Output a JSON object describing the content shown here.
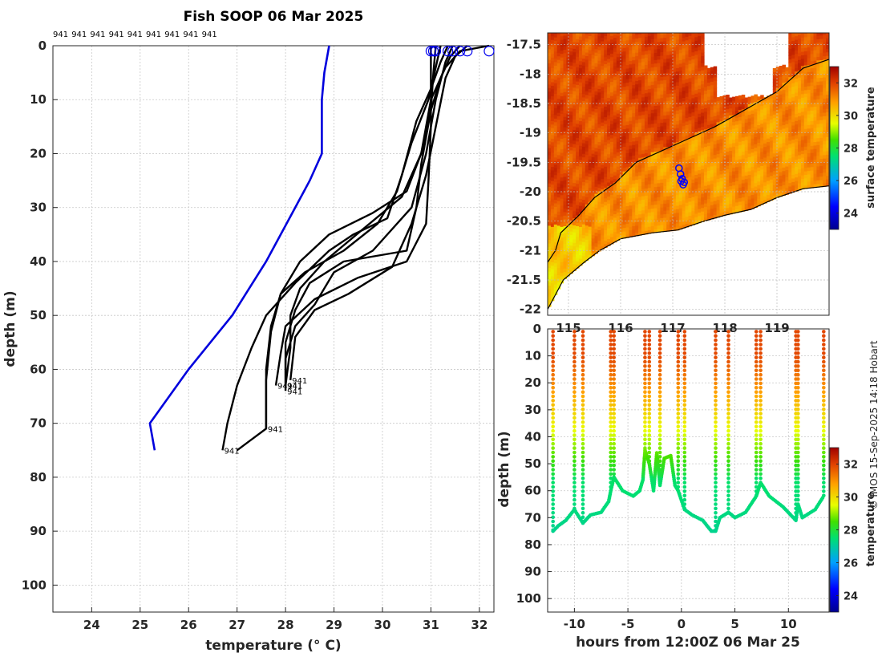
{
  "title": "Fish SOOP 06 Mar 2025",
  "profile_ids": [
    "941",
    "941",
    "941",
    "941",
    "941",
    "941",
    "941",
    "941",
    "941"
  ],
  "profile_end_labels": [
    "941",
    "941",
    "941",
    "941",
    "941",
    "941",
    "941"
  ],
  "credit": "© IMOS 15-Sep-2025 14:18 Hobart",
  "chart_data": [
    {
      "type": "line",
      "name": "temperature-profiles",
      "xlabel": "temperature (° C)",
      "ylabel": "depth (m)",
      "xlim": [
        23.2,
        32.3
      ],
      "ylim": [
        105,
        0
      ],
      "xticks": [
        "24",
        "25",
        "26",
        "27",
        "28",
        "29",
        "30",
        "31",
        "32"
      ],
      "yticks": [
        "0",
        "10",
        "20",
        "30",
        "40",
        "50",
        "60",
        "70",
        "80",
        "90",
        "100"
      ],
      "grid": true,
      "reference_profile": {
        "color": "#0000dd",
        "points": [
          [
            28.9,
            0
          ],
          [
            28.8,
            5
          ],
          [
            28.75,
            10
          ],
          [
            28.75,
            20
          ],
          [
            28.5,
            25
          ],
          [
            28.2,
            30
          ],
          [
            27.6,
            40
          ],
          [
            26.9,
            50
          ],
          [
            26.0,
            60
          ],
          [
            25.2,
            70
          ],
          [
            25.3,
            75
          ]
        ]
      },
      "surface_markers": [
        31.0,
        31.05,
        31.1,
        31.35,
        31.45,
        31.6,
        31.75,
        32.2
      ],
      "profiles": [
        {
          "points": [
            [
              31.0,
              0
            ],
            [
              31.0,
              5
            ],
            [
              31.0,
              15
            ],
            [
              30.95,
              25
            ],
            [
              30.9,
              33
            ],
            [
              30.5,
              40
            ],
            [
              29.5,
              43
            ],
            [
              28.6,
              47
            ],
            [
              28.0,
              52
            ],
            [
              27.9,
              57
            ],
            [
              27.8,
              63
            ]
          ]
        },
        {
          "points": [
            [
              31.1,
              0
            ],
            [
              31.05,
              5
            ],
            [
              31.0,
              12
            ],
            [
              30.8,
              20
            ],
            [
              30.4,
              28
            ],
            [
              29.6,
              34
            ],
            [
              28.8,
              40
            ],
            [
              28.3,
              45
            ],
            [
              28.1,
              50
            ],
            [
              28.1,
              56
            ],
            [
              28.0,
              63
            ]
          ]
        },
        {
          "points": [
            [
              31.2,
              0
            ],
            [
              31.1,
              4
            ],
            [
              30.95,
              10
            ],
            [
              30.6,
              18
            ],
            [
              30.3,
              27
            ],
            [
              29.9,
              33
            ],
            [
              29.2,
              38
            ],
            [
              28.4,
              42
            ],
            [
              27.9,
              46
            ],
            [
              27.7,
              52
            ],
            [
              27.6,
              60
            ],
            [
              27.6,
              71
            ]
          ]
        },
        {
          "points": [
            [
              31.35,
              0
            ],
            [
              31.2,
              3
            ],
            [
              31.0,
              8
            ],
            [
              30.7,
              14
            ],
            [
              30.4,
              24
            ],
            [
              30.1,
              32
            ],
            [
              29.4,
              35
            ],
            [
              28.9,
              38
            ],
            [
              28.2,
              44
            ],
            [
              27.6,
              50
            ],
            [
              27.3,
              56
            ],
            [
              27.0,
              63
            ],
            [
              26.8,
              70
            ],
            [
              26.7,
              75
            ]
          ]
        },
        {
          "points": [
            [
              31.45,
              0
            ],
            [
              31.3,
              3
            ],
            [
              31.1,
              10
            ],
            [
              30.9,
              20
            ],
            [
              30.6,
              30
            ],
            [
              29.8,
              38
            ],
            [
              29.0,
              42
            ],
            [
              28.6,
              48
            ],
            [
              28.2,
              52
            ],
            [
              28.0,
              58
            ],
            [
              28.0,
              64
            ]
          ]
        },
        {
          "points": [
            [
              31.6,
              0
            ],
            [
              31.4,
              2
            ],
            [
              31.2,
              6
            ],
            [
              31.0,
              12
            ],
            [
              30.8,
              22
            ],
            [
              30.7,
              30
            ],
            [
              30.5,
              38
            ],
            [
              29.2,
              40
            ],
            [
              28.5,
              44
            ],
            [
              28.2,
              49
            ],
            [
              28.0,
              55
            ],
            [
              28.0,
              63
            ]
          ]
        },
        {
          "points": [
            [
              31.75,
              0
            ],
            [
              31.5,
              2
            ],
            [
              31.3,
              6
            ],
            [
              31.1,
              15
            ],
            [
              30.9,
              24
            ],
            [
              30.6,
              33
            ],
            [
              30.2,
              41
            ],
            [
              29.3,
              46
            ],
            [
              28.6,
              49
            ],
            [
              28.2,
              54
            ],
            [
              28.1,
              62
            ]
          ]
        },
        {
          "points": [
            [
              32.2,
              0
            ],
            [
              31.6,
              1
            ],
            [
              31.3,
              4
            ],
            [
              31.0,
              10
            ],
            [
              30.8,
              20
            ],
            [
              30.5,
              27
            ],
            [
              29.8,
              31
            ],
            [
              28.9,
              35
            ],
            [
              28.3,
              40
            ],
            [
              27.9,
              46
            ],
            [
              27.7,
              53
            ],
            [
              27.6,
              62
            ],
            [
              27.6,
              71
            ],
            [
              27.3,
              73
            ],
            [
              27.0,
              75
            ]
          ]
        }
      ]
    },
    {
      "type": "heatmap",
      "name": "sst-map",
      "xlim": [
        114.6,
        120.0
      ],
      "ylim": [
        -22.1,
        -17.3
      ],
      "xticks": [
        "115",
        "116",
        "117",
        "118",
        "119"
      ],
      "yticks": [
        "-17.5",
        "-18",
        "-18.5",
        "-19",
        "-19.5",
        "-20",
        "-20.5",
        "-21",
        "-21.5",
        "-22"
      ],
      "colorbar_label": "surface temperature",
      "colorbar_ticks": [
        "24",
        "26",
        "28",
        "30",
        "32"
      ],
      "colorbar_range": [
        23,
        33
      ],
      "coastline": [
        [
          114.6,
          -21.2
        ],
        [
          114.75,
          -21.0
        ],
        [
          114.85,
          -20.7
        ],
        [
          115.2,
          -20.4
        ],
        [
          115.5,
          -20.1
        ],
        [
          115.9,
          -19.85
        ],
        [
          116.3,
          -19.5
        ],
        [
          116.8,
          -19.3
        ],
        [
          117.3,
          -19.1
        ],
        [
          117.8,
          -18.9
        ],
        [
          118.2,
          -18.7
        ],
        [
          118.6,
          -18.5
        ],
        [
          119.0,
          -18.3
        ],
        [
          119.5,
          -17.9
        ],
        [
          120.0,
          -17.75
        ]
      ],
      "lower_coast": [
        [
          114.6,
          -22.0
        ],
        [
          114.9,
          -21.5
        ],
        [
          115.3,
          -21.2
        ],
        [
          115.6,
          -21.0
        ],
        [
          116.0,
          -20.8
        ],
        [
          116.6,
          -20.7
        ],
        [
          117.1,
          -20.65
        ],
        [
          117.6,
          -20.5
        ],
        [
          118.0,
          -20.4
        ],
        [
          118.5,
          -20.3
        ],
        [
          119.0,
          -20.1
        ],
        [
          119.5,
          -19.95
        ],
        [
          120.0,
          -19.9
        ]
      ],
      "track": [
        [
          117.12,
          -19.6
        ],
        [
          117.15,
          -19.7
        ],
        [
          117.18,
          -19.78
        ],
        [
          117.22,
          -19.84
        ],
        [
          117.2,
          -19.88
        ],
        [
          117.16,
          -19.82
        ]
      ]
    },
    {
      "type": "scatter",
      "name": "depth-time-section",
      "xlabel": "hours from 12:00Z 06 Mar 25",
      "ylabel": "depth (m)",
      "xlim": [
        -12.5,
        13.8
      ],
      "ylim": [
        105,
        0
      ],
      "xticks": [
        "-10",
        "-5",
        "0",
        "5",
        "10"
      ],
      "yticks": [
        "0",
        "10",
        "20",
        "30",
        "40",
        "50",
        "60",
        "70",
        "80",
        "90",
        "100"
      ],
      "colorbar_label": "temperature",
      "colorbar_ticks": [
        "24",
        "26",
        "28",
        "30",
        "32"
      ],
      "colorbar_range": [
        23,
        33
      ],
      "casts": [
        -12.0,
        -10.0,
        -9.2,
        -6.6,
        -6.3,
        -3.4,
        -3.0,
        -2.0,
        -0.3,
        0.3,
        3.2,
        4.4,
        7.0,
        7.4,
        10.7,
        10.9,
        13.3
      ],
      "bottom_path": [
        [
          -12.0,
          75
        ],
        [
          -11.5,
          73
        ],
        [
          -10.8,
          71
        ],
        [
          -10.0,
          67
        ],
        [
          -9.2,
          72
        ],
        [
          -8.5,
          69
        ],
        [
          -7.5,
          68
        ],
        [
          -6.8,
          64
        ],
        [
          -6.6,
          60
        ],
        [
          -6.3,
          55
        ],
        [
          -5.5,
          60
        ],
        [
          -4.5,
          62
        ],
        [
          -3.9,
          60
        ],
        [
          -3.6,
          56
        ],
        [
          -3.4,
          45
        ],
        [
          -3.0,
          50
        ],
        [
          -2.6,
          60
        ],
        [
          -2.3,
          46
        ],
        [
          -2.0,
          58
        ],
        [
          -1.6,
          48
        ],
        [
          -1.0,
          47
        ],
        [
          -0.6,
          58
        ],
        [
          -0.3,
          60
        ],
        [
          0.3,
          67
        ],
        [
          1.0,
          69
        ],
        [
          2.0,
          71
        ],
        [
          2.8,
          75
        ],
        [
          3.2,
          75
        ],
        [
          3.6,
          70
        ],
        [
          4.4,
          68
        ],
        [
          5.0,
          70
        ],
        [
          6.0,
          68
        ],
        [
          7.0,
          62
        ],
        [
          7.4,
          57
        ],
        [
          8.2,
          62
        ],
        [
          9.5,
          66
        ],
        [
          10.7,
          71
        ],
        [
          10.9,
          65
        ],
        [
          11.3,
          70
        ],
        [
          12.5,
          67
        ],
        [
          13.3,
          62
        ]
      ]
    }
  ]
}
